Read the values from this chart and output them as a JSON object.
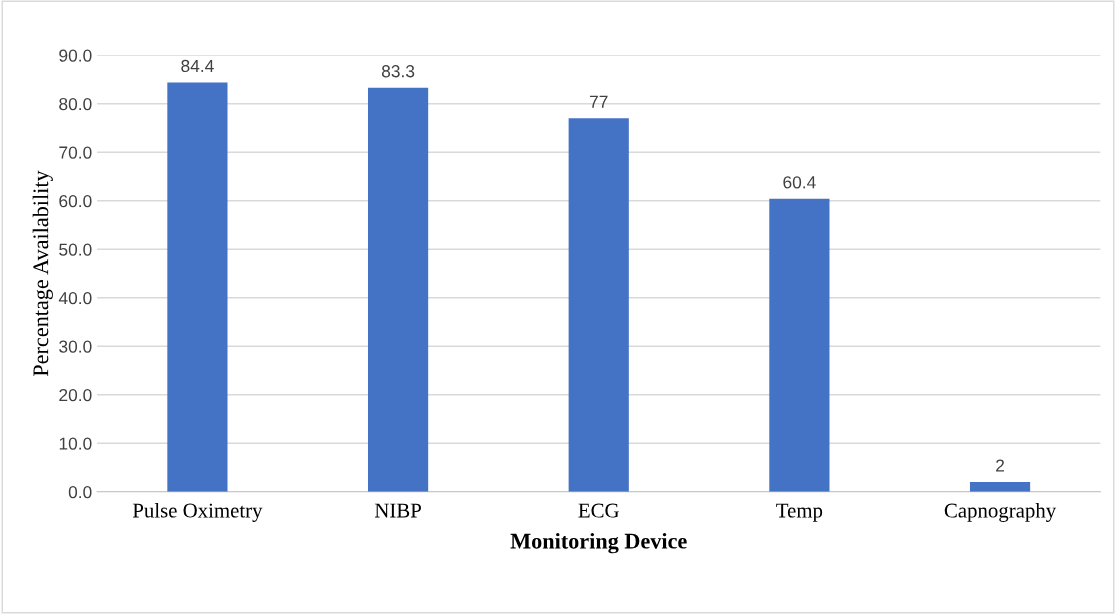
{
  "chart_data": {
    "type": "bar",
    "xlabel": "Monitoring Device",
    "ylabel": "Percentage Availability",
    "categories": [
      "Pulse Oximetry",
      "NIBP",
      "ECG",
      "Temp",
      "Capnography"
    ],
    "values": [
      84.4,
      83.3,
      77,
      60.4,
      2
    ],
    "color": "#4472c4",
    "ylim": [
      0,
      90
    ],
    "yticks": [
      {
        "value": 0,
        "label": "0.0"
      },
      {
        "value": 10,
        "label": "10.0"
      },
      {
        "value": 20,
        "label": "20.0"
      },
      {
        "value": 30,
        "label": "30.0"
      },
      {
        "value": 40,
        "label": "40.0"
      },
      {
        "value": 50,
        "label": "50.0"
      },
      {
        "value": 60,
        "label": "60.0"
      },
      {
        "value": 70,
        "label": "70.0"
      },
      {
        "value": 80,
        "label": "80.0"
      },
      {
        "value": 90,
        "label": "90.0"
      }
    ],
    "grid": "y",
    "data_labels": true,
    "legend": false
  }
}
